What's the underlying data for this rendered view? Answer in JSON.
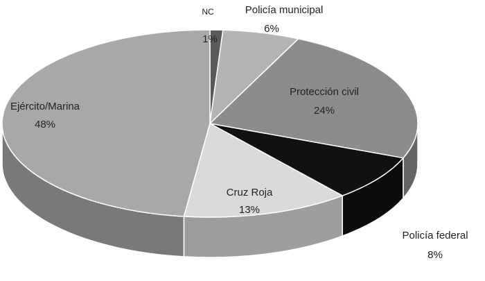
{
  "chart_data": {
    "type": "pie",
    "categories": [
      "NC",
      "Policía municipal",
      "Protección civil",
      "Policía federal",
      "Cruz Roja",
      "Ejército/Marina"
    ],
    "values": [
      1,
      6,
      24,
      8,
      13,
      48
    ],
    "value_labels": [
      "1%",
      "6%",
      "24%",
      "8%",
      "13%",
      "48%"
    ],
    "colors": [
      "#5a5a5a",
      "#b4b4b4",
      "#8c8c8c",
      "#111111",
      "#dadada",
      "#a8a8a8"
    ]
  }
}
